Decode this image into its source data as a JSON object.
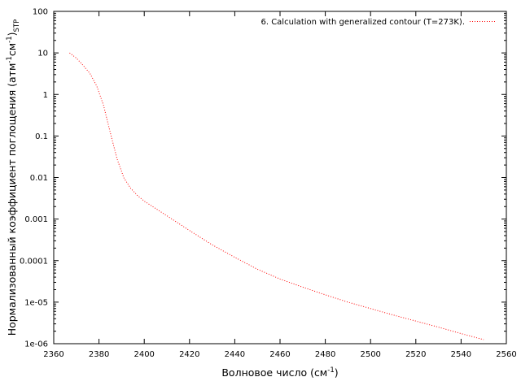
{
  "chart_data": {
    "type": "line",
    "title": "",
    "xlabel": "Волновое число (см",
    "xlabel_sup": "-1",
    "xlabel_end": ")",
    "ylabel": {
      "main": "Нормализованный коэффициент поглощения (атм",
      "sup1": "-1",
      "mid": "см",
      "sup2": "-1",
      "close": ")",
      "sub": "STP"
    },
    "xlim": [
      2360,
      2560
    ],
    "ylim": [
      1e-06,
      100
    ],
    "yscale": "log",
    "grid": false,
    "legend_position": "top-right",
    "x_ticks": [
      2360,
      2380,
      2400,
      2420,
      2440,
      2460,
      2480,
      2500,
      2520,
      2540,
      2560
    ],
    "y_ticks": [
      {
        "value": 100,
        "label": "100"
      },
      {
        "value": 10,
        "label": "10"
      },
      {
        "value": 1,
        "label": "1"
      },
      {
        "value": 0.1,
        "label": "0.1"
      },
      {
        "value": 0.01,
        "label": "0.01"
      },
      {
        "value": 0.001,
        "label": "0.001"
      },
      {
        "value": 0.0001,
        "label": "0.0001"
      },
      {
        "value": 1e-05,
        "label": "1e-05"
      },
      {
        "value": 1e-06,
        "label": "1e-06"
      }
    ],
    "series": [
      {
        "name": "6. Calculation with generalized contour (T=273K).",
        "color": "#ff0000",
        "line_style": "dotted",
        "x": [
          2367,
          2370,
          2373,
          2376,
          2379,
          2382,
          2385,
          2388,
          2391,
          2394,
          2397,
          2400,
          2405,
          2410,
          2420,
          2430,
          2440,
          2450,
          2460,
          2470,
          2480,
          2490,
          2500,
          2510,
          2520,
          2530,
          2540,
          2550
        ],
        "y": [
          10,
          7.5,
          5.0,
          3.2,
          1.6,
          0.55,
          0.12,
          0.028,
          0.0098,
          0.0055,
          0.0037,
          0.0027,
          0.0018,
          0.0012,
          0.00053,
          0.00024,
          0.00012,
          6.2e-05,
          3.6e-05,
          2.3e-05,
          1.5e-05,
          1e-05,
          7e-06,
          4.9e-06,
          3.5e-06,
          2.5e-06,
          1.75e-06,
          1.25e-06
        ]
      }
    ]
  }
}
